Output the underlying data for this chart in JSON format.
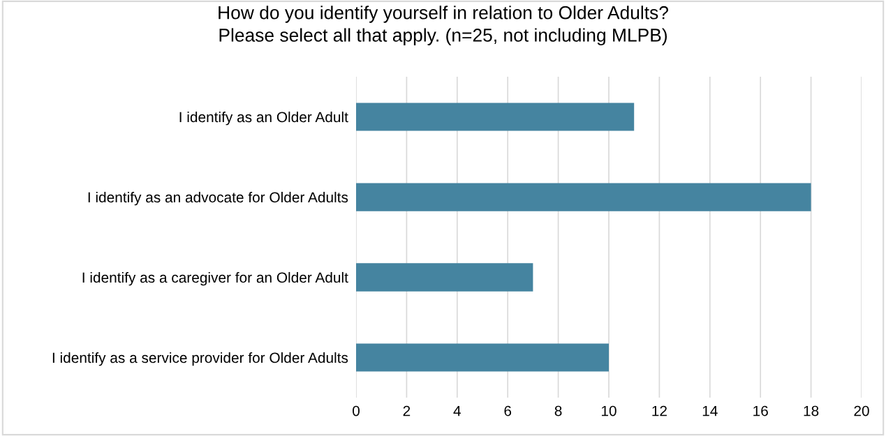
{
  "chart_data": {
    "type": "bar",
    "orientation": "horizontal",
    "title": "How do you identify yourself in relation to Older Adults?\nPlease select all that apply. (n=25, not including MLPB)",
    "categories": [
      "I identify as an Older Adult",
      "I identify as an advocate for Older Adults",
      "I identify as a caregiver for an Older Adult",
      "I identify as a service provider for Older Adults"
    ],
    "values": [
      11,
      18,
      7,
      10
    ],
    "color": "#4584a0",
    "xlim": [
      0,
      20
    ],
    "xticks": [
      0,
      2,
      4,
      6,
      8,
      10,
      12,
      14,
      16,
      18,
      20
    ],
    "grid": "x"
  }
}
